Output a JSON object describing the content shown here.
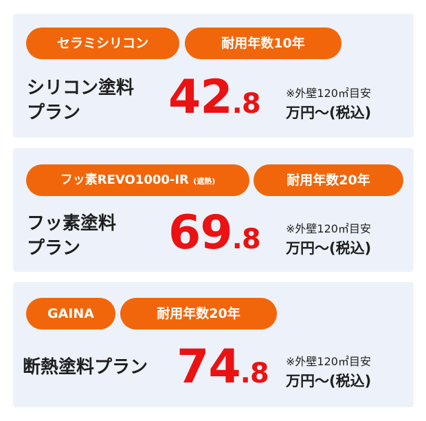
{
  "accent_color": "#f2660b",
  "price_color": "#ea1212",
  "card_bg": "#edf2fa",
  "plans": [
    {
      "material": "セラミシリコン",
      "material_sub": "",
      "durability": "耐用年数10年",
      "plan_line1": "シリコン塗料",
      "plan_line2": "プラン",
      "price_int": "42",
      "price_dec": ".8",
      "note": "※外壁120㎡目安",
      "unit": "万円〜(税込)"
    },
    {
      "material": "フッ素REVO1000-IR",
      "material_sub": "(遮熱)",
      "durability": "耐用年数20年",
      "plan_line1": "フッ素塗料",
      "plan_line2": "プラン",
      "price_int": "69",
      "price_dec": ".8",
      "note": "※外壁120㎡目安",
      "unit": "万円〜(税込)"
    },
    {
      "material": "GAINA",
      "material_sub": "",
      "durability": "耐用年数20年",
      "plan_line1": "断熱塗料プラン",
      "plan_line2": "",
      "price_int": "74",
      "price_dec": ".8",
      "note": "※外壁120㎡目安",
      "unit": "万円〜(税込)"
    }
  ]
}
